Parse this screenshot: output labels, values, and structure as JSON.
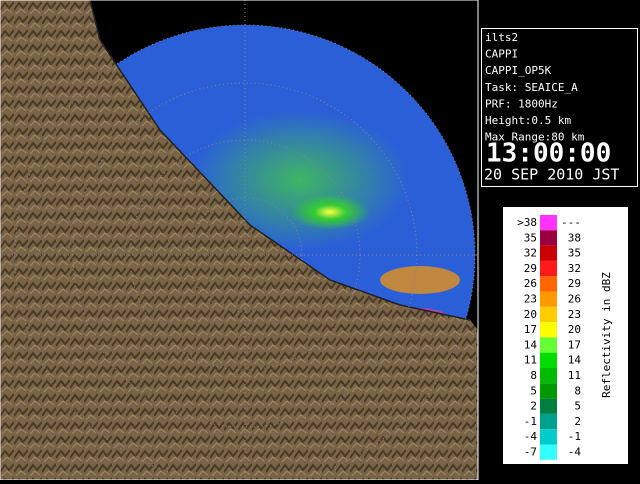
{
  "info": {
    "lines": [
      "ilts2",
      "CAPPI",
      "CAPPI_OP5K",
      "Task: SEAICE_A",
      "PRF: 1800Hz",
      "Height:0.5 km",
      "Max Range:80 km"
    ],
    "time": "13:00:00",
    "date": "20 SEP 2010 JST"
  },
  "legend": {
    "axis_label": "Reflectivity in dBZ",
    "rows": [
      {
        "low": ">38",
        "high": "---",
        "color": "#ff33ff"
      },
      {
        "low": "35",
        "high": "38",
        "color": "#99003d"
      },
      {
        "low": "32",
        "high": "35",
        "color": "#cc0000"
      },
      {
        "low": "29",
        "high": "32",
        "color": "#ff1a1a"
      },
      {
        "low": "26",
        "high": "29",
        "color": "#ff6600"
      },
      {
        "low": "23",
        "high": "26",
        "color": "#ff9900"
      },
      {
        "low": "20",
        "high": "23",
        "color": "#ffcc00"
      },
      {
        "low": "17",
        "high": "20",
        "color": "#ffff00"
      },
      {
        "low": "14",
        "high": "17",
        "color": "#66ff33"
      },
      {
        "low": "11",
        "high": "14",
        "color": "#00dd00"
      },
      {
        "low": "8",
        "high": "11",
        "color": "#00bb00"
      },
      {
        "low": "5",
        "high": "8",
        "color": "#009900"
      },
      {
        "low": "2",
        "high": "5",
        "color": "#007f3f"
      },
      {
        "low": "-1",
        "high": "2",
        "color": "#00a08c"
      },
      {
        "low": "-4",
        "high": "-1",
        "color": "#00cccc"
      },
      {
        "low": "-7",
        "high": "-4",
        "color": "#33ffff"
      }
    ]
  }
}
